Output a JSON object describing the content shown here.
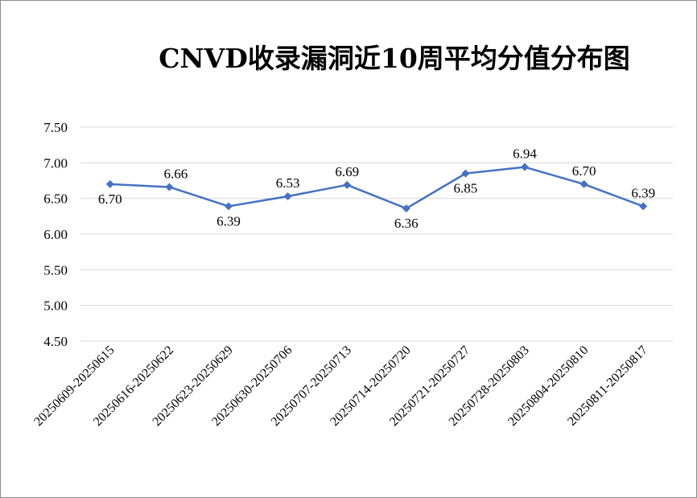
{
  "chart_data": {
    "type": "line",
    "title": "CNVD收录漏洞近10周平均分值分布图",
    "xlabel": "",
    "ylabel": "",
    "categories": [
      "20250609-20250615",
      "20250616-20250622",
      "20250623-20250629",
      "20250630-20250706",
      "20250707-20250713",
      "20250714-20250720",
      "20250721-20250727",
      "20250728-20250803",
      "20250804-20250810",
      "20250811-20250817"
    ],
    "series": [
      {
        "values": [
          6.7,
          6.66,
          6.39,
          6.53,
          6.69,
          6.36,
          6.85,
          6.94,
          6.7,
          6.39
        ],
        "labels": [
          "6.70",
          "6.66",
          "6.39",
          "6.53",
          "6.69",
          "6.36",
          "6.85",
          "6.94",
          "6.70",
          "6.39"
        ],
        "color": "#4472c4"
      }
    ],
    "ylim": [
      4.5,
      7.5
    ],
    "yticks": [
      "4.50",
      "5.00",
      "5.50",
      "6.00",
      "6.50",
      "7.00",
      "7.50"
    ],
    "grid": true,
    "legend": "none"
  }
}
